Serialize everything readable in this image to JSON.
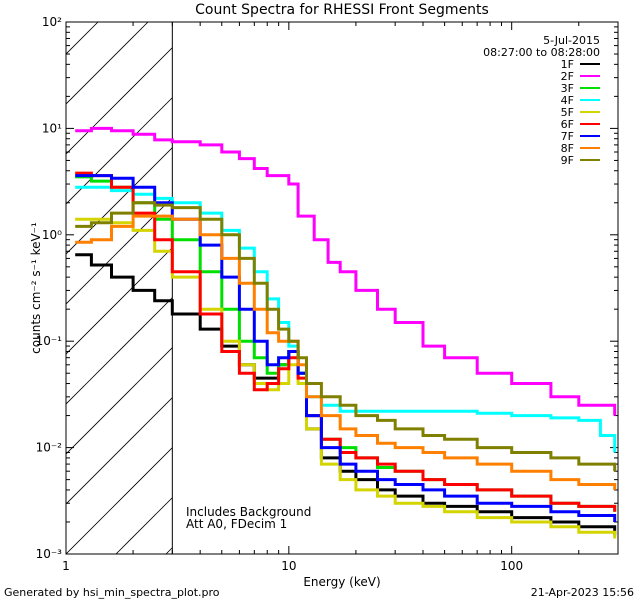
{
  "chart_data": {
    "type": "line",
    "title": "Count Spectra for RHESSI Front Segments",
    "xlabel": "Energy (keV)",
    "ylabel": "counts cm⁻² s⁻¹ keV⁻¹",
    "xscale": "log",
    "yscale": "log",
    "xlim": [
      1,
      300
    ],
    "ylim": [
      0.001,
      100
    ],
    "x_ticks": [
      {
        "value": 1,
        "label": "1"
      },
      {
        "value": 10,
        "label": "10"
      },
      {
        "value": 100,
        "label": "100"
      }
    ],
    "y_ticks": [
      {
        "value": 0.001,
        "label": "10⁻³"
      },
      {
        "value": 0.01,
        "label": "10⁻²"
      },
      {
        "value": 0.1,
        "label": "10⁻¹"
      },
      {
        "value": 1,
        "label": "10⁰"
      },
      {
        "value": 10,
        "label": "10¹"
      },
      {
        "value": 100,
        "label": "10²"
      }
    ],
    "date": "5-Jul-2015",
    "time_range": "08:27:00 to 08:28:00",
    "hatched_region": {
      "x_from": 1,
      "x_to": 3
    },
    "annotations": [
      "Includes Background",
      "Att A0, FDecim 1"
    ],
    "footer_left": "Generated by hsi_min_spectra_plot.pro",
    "footer_right": "21-Apr-2023 15:56",
    "legend_position": "top-right",
    "series": [
      {
        "name": "1F",
        "color": "#000000",
        "points": [
          [
            1.1,
            0.65
          ],
          [
            1.3,
            0.52
          ],
          [
            1.6,
            0.4
          ],
          [
            2,
            0.3
          ],
          [
            2.5,
            0.24
          ],
          [
            3,
            0.18
          ],
          [
            4,
            0.13
          ],
          [
            5,
            0.09
          ],
          [
            6,
            0.06
          ],
          [
            7,
            0.045
          ],
          [
            8,
            0.045
          ],
          [
            9,
            0.06
          ],
          [
            10,
            0.08
          ],
          [
            11,
            0.05
          ],
          [
            12,
            0.015
          ],
          [
            14,
            0.008
          ],
          [
            17,
            0.006
          ],
          [
            20,
            0.005
          ],
          [
            25,
            0.004
          ],
          [
            30,
            0.0035
          ],
          [
            40,
            0.003
          ],
          [
            50,
            0.0028
          ],
          [
            70,
            0.0025
          ],
          [
            100,
            0.0022
          ],
          [
            150,
            0.002
          ],
          [
            200,
            0.0018
          ],
          [
            290,
            0.0015
          ]
        ]
      },
      {
        "name": "2F",
        "color": "#ff00ff",
        "points": [
          [
            1.1,
            9.5
          ],
          [
            1.3,
            10.0
          ],
          [
            1.6,
            9.5
          ],
          [
            2,
            8.8
          ],
          [
            2.5,
            7.8
          ],
          [
            3,
            7.5
          ],
          [
            4,
            7.0
          ],
          [
            5,
            6.0
          ],
          [
            6,
            5.2
          ],
          [
            7,
            4.2
          ],
          [
            8,
            3.6
          ],
          [
            10,
            3.0
          ],
          [
            11,
            1.5
          ],
          [
            13,
            0.9
          ],
          [
            15,
            0.55
          ],
          [
            17,
            0.45
          ],
          [
            20,
            0.3
          ],
          [
            25,
            0.2
          ],
          [
            30,
            0.15
          ],
          [
            40,
            0.09
          ],
          [
            50,
            0.07
          ],
          [
            70,
            0.05
          ],
          [
            100,
            0.04
          ],
          [
            150,
            0.03
          ],
          [
            200,
            0.025
          ],
          [
            290,
            0.02
          ]
        ]
      },
      {
        "name": "3F",
        "color": "#00e000",
        "points": [
          [
            1.1,
            3.5
          ],
          [
            1.3,
            3.2
          ],
          [
            1.6,
            2.8
          ],
          [
            2,
            2.0
          ],
          [
            2.5,
            1.4
          ],
          [
            3,
            0.9
          ],
          [
            4,
            0.45
          ],
          [
            5,
            0.2
          ],
          [
            6,
            0.1
          ],
          [
            7,
            0.07
          ],
          [
            8,
            0.05
          ],
          [
            9,
            0.06
          ],
          [
            10,
            0.08
          ],
          [
            11,
            0.05
          ],
          [
            12,
            0.02
          ],
          [
            14,
            0.012
          ],
          [
            17,
            0.01
          ],
          [
            20,
            0.008
          ],
          [
            25,
            0.0065
          ],
          [
            30,
            0.006
          ],
          [
            40,
            0.005
          ],
          [
            50,
            0.0045
          ],
          [
            70,
            0.004
          ],
          [
            100,
            0.0035
          ],
          [
            150,
            0.003
          ],
          [
            200,
            0.0028
          ],
          [
            290,
            0.0025
          ]
        ]
      },
      {
        "name": "4F",
        "color": "#00ffff",
        "points": [
          [
            1.1,
            2.8
          ],
          [
            1.3,
            2.8
          ],
          [
            1.6,
            2.6
          ],
          [
            2,
            2.4
          ],
          [
            2.5,
            2.2
          ],
          [
            3,
            2.0
          ],
          [
            4,
            1.6
          ],
          [
            5,
            1.1
          ],
          [
            6,
            0.75
          ],
          [
            7,
            0.45
          ],
          [
            8,
            0.25
          ],
          [
            9,
            0.15
          ],
          [
            10,
            0.09
          ],
          [
            11,
            0.05
          ],
          [
            12,
            0.03
          ],
          [
            14,
            0.025
          ],
          [
            17,
            0.022
          ],
          [
            20,
            0.022
          ],
          [
            30,
            0.022
          ],
          [
            50,
            0.022
          ],
          [
            70,
            0.021
          ],
          [
            100,
            0.02
          ],
          [
            150,
            0.019
          ],
          [
            200,
            0.018
          ],
          [
            250,
            0.013
          ],
          [
            290,
            0.009
          ]
        ]
      },
      {
        "name": "5F",
        "color": "#d4d400",
        "points": [
          [
            1.1,
            1.4
          ],
          [
            1.3,
            1.4
          ],
          [
            1.6,
            1.3
          ],
          [
            2,
            1.1
          ],
          [
            2.5,
            0.7
          ],
          [
            3,
            0.4
          ],
          [
            4,
            0.2
          ],
          [
            5,
            0.1
          ],
          [
            6,
            0.06
          ],
          [
            7,
            0.04
          ],
          [
            8,
            0.035
          ],
          [
            9,
            0.04
          ],
          [
            10,
            0.06
          ],
          [
            11,
            0.04
          ],
          [
            12,
            0.015
          ],
          [
            14,
            0.007
          ],
          [
            17,
            0.005
          ],
          [
            20,
            0.004
          ],
          [
            25,
            0.0035
          ],
          [
            30,
            0.003
          ],
          [
            40,
            0.0028
          ],
          [
            50,
            0.0025
          ],
          [
            70,
            0.0022
          ],
          [
            100,
            0.002
          ],
          [
            150,
            0.0018
          ],
          [
            200,
            0.0016
          ],
          [
            290,
            0.0014
          ]
        ]
      },
      {
        "name": "6F",
        "color": "#ff0000",
        "points": [
          [
            1.1,
            3.8
          ],
          [
            1.3,
            3.6
          ],
          [
            1.6,
            2.8
          ],
          [
            2,
            1.6
          ],
          [
            2.5,
            0.9
          ],
          [
            3,
            0.45
          ],
          [
            4,
            0.18
          ],
          [
            5,
            0.08
          ],
          [
            6,
            0.05
          ],
          [
            7,
            0.035
          ],
          [
            8,
            0.04
          ],
          [
            9,
            0.055
          ],
          [
            10,
            0.07
          ],
          [
            11,
            0.045
          ],
          [
            12,
            0.02
          ],
          [
            14,
            0.012
          ],
          [
            17,
            0.009
          ],
          [
            20,
            0.008
          ],
          [
            25,
            0.007
          ],
          [
            30,
            0.006
          ],
          [
            40,
            0.005
          ],
          [
            50,
            0.0045
          ],
          [
            70,
            0.004
          ],
          [
            100,
            0.0035
          ],
          [
            150,
            0.003
          ],
          [
            200,
            0.0028
          ],
          [
            290,
            0.0025
          ]
        ]
      },
      {
        "name": "7F",
        "color": "#0000ff",
        "points": [
          [
            1.1,
            3.6
          ],
          [
            1.3,
            3.6
          ],
          [
            1.6,
            3.4
          ],
          [
            2,
            2.8
          ],
          [
            2.5,
            2.0
          ],
          [
            3,
            1.4
          ],
          [
            4,
            0.8
          ],
          [
            5,
            0.4
          ],
          [
            6,
            0.2
          ],
          [
            7,
            0.1
          ],
          [
            8,
            0.06
          ],
          [
            9,
            0.07
          ],
          [
            10,
            0.08
          ],
          [
            11,
            0.05
          ],
          [
            12,
            0.02
          ],
          [
            14,
            0.01
          ],
          [
            17,
            0.007
          ],
          [
            20,
            0.006
          ],
          [
            25,
            0.005
          ],
          [
            30,
            0.0045
          ],
          [
            40,
            0.004
          ],
          [
            50,
            0.0035
          ],
          [
            70,
            0.003
          ],
          [
            100,
            0.0028
          ],
          [
            150,
            0.0025
          ],
          [
            200,
            0.0023
          ],
          [
            290,
            0.002
          ]
        ]
      },
      {
        "name": "8F",
        "color": "#ff8000",
        "points": [
          [
            1.1,
            0.85
          ],
          [
            1.3,
            0.9
          ],
          [
            1.6,
            1.2
          ],
          [
            2,
            1.5
          ],
          [
            2.5,
            1.5
          ],
          [
            3,
            1.4
          ],
          [
            4,
            1.0
          ],
          [
            5,
            0.6
          ],
          [
            6,
            0.35
          ],
          [
            7,
            0.2
          ],
          [
            8,
            0.12
          ],
          [
            9,
            0.1
          ],
          [
            10,
            0.1
          ],
          [
            11,
            0.06
          ],
          [
            12,
            0.03
          ],
          [
            14,
            0.02
          ],
          [
            17,
            0.015
          ],
          [
            20,
            0.013
          ],
          [
            25,
            0.011
          ],
          [
            30,
            0.01
          ],
          [
            40,
            0.009
          ],
          [
            50,
            0.008
          ],
          [
            70,
            0.007
          ],
          [
            100,
            0.006
          ],
          [
            150,
            0.005
          ],
          [
            200,
            0.0045
          ],
          [
            290,
            0.004
          ]
        ]
      },
      {
        "name": "9F",
        "color": "#808000",
        "points": [
          [
            1.1,
            1.2
          ],
          [
            1.3,
            1.3
          ],
          [
            1.6,
            1.6
          ],
          [
            2,
            2.0
          ],
          [
            2.5,
            1.9
          ],
          [
            3,
            1.8
          ],
          [
            4,
            1.4
          ],
          [
            5,
            1.0
          ],
          [
            6,
            0.6
          ],
          [
            7,
            0.35
          ],
          [
            8,
            0.2
          ],
          [
            9,
            0.13
          ],
          [
            10,
            0.1
          ],
          [
            11,
            0.07
          ],
          [
            12,
            0.04
          ],
          [
            14,
            0.03
          ],
          [
            17,
            0.025
          ],
          [
            20,
            0.02
          ],
          [
            25,
            0.018
          ],
          [
            30,
            0.015
          ],
          [
            40,
            0.013
          ],
          [
            50,
            0.012
          ],
          [
            70,
            0.01
          ],
          [
            100,
            0.009
          ],
          [
            150,
            0.008
          ],
          [
            200,
            0.007
          ],
          [
            290,
            0.006
          ]
        ]
      }
    ]
  }
}
